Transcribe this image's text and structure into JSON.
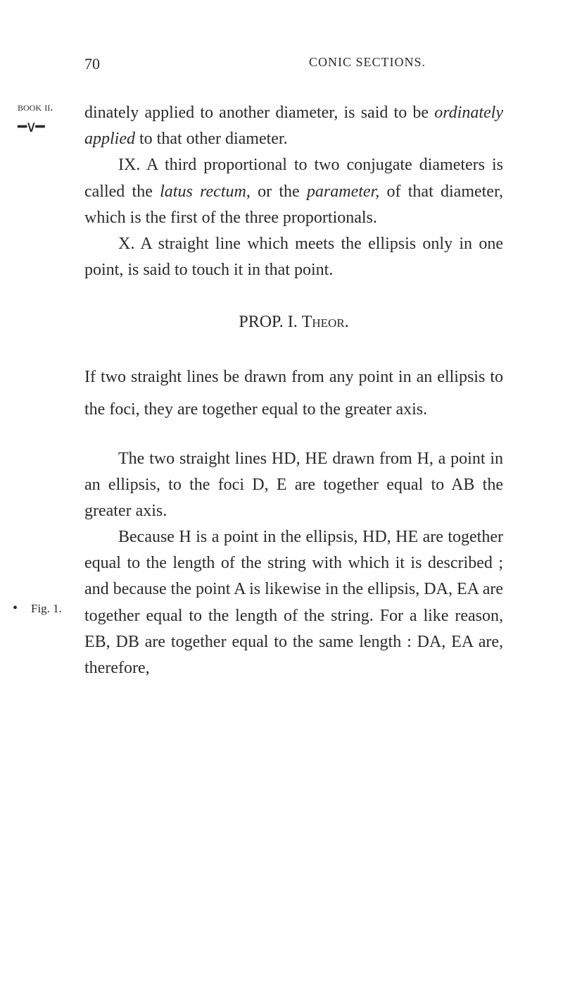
{
  "header": {
    "page_number": "70",
    "running_title": "CONIC SECTIONS."
  },
  "margin": {
    "book_label": "book ii.",
    "bracket": "⌣⌣",
    "fig_label": "Fig. 1.",
    "side_dot": "•"
  },
  "paragraphs": {
    "p1": "dinately applied to another diameter, is said to be ",
    "p1_italic": "ordinately applied",
    "p1_cont": " to that other diameter.",
    "p2_lead": "IX. A third proportional to two conjugate diameters is called the ",
    "p2_italic1": "latus rectum,",
    "p2_mid": " or the ",
    "p2_italic2": "parameter,",
    "p2_end": " of that diameter, which is the first of the three proportionals.",
    "p3": "X. A straight line which meets the ellipsis only in one point, is said to touch it in that point.",
    "prop_heading_a": "PROP. I.   ",
    "prop_heading_b": "Theor.",
    "if_line": "If two straight lines be drawn from any point in an ellipsis to the foci, they are together equal to the greater axis.",
    "p4": "The two straight lines HD, HE drawn from H, a point in an ellipsis, to the foci D, E are together equal to AB the greater axis.",
    "p5": "Because H is a point in the ellipsis, HD, HE are together equal to the length of the string with which it is described ; and because the point A is likewise in the ellipsis, DA, EA are together equal to the length of the string. For a like reason, EB, DB are together equal to the same length : DA, EA are, therefore,"
  }
}
